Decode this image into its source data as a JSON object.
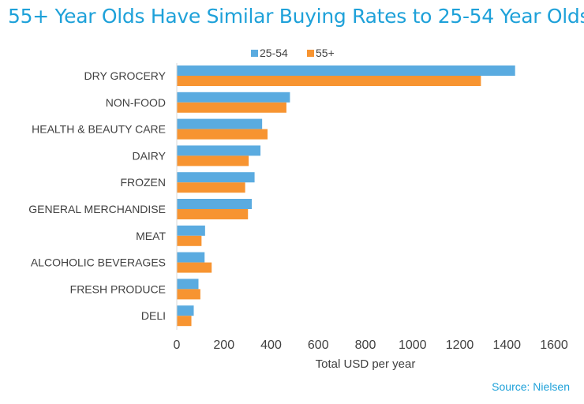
{
  "title": "55+ Year Olds Have Similar Buying Rates to 25-54 Year Olds",
  "source": "Source: Nielsen",
  "colors": {
    "series_25_54": "#5aabe0",
    "series_55_plus": "#f79431",
    "title": "#1ea1d9",
    "text": "#404040"
  },
  "chart_data": {
    "type": "bar",
    "orientation": "horizontal",
    "categories": [
      "DRY GROCERY",
      "NON-FOOD",
      "HEALTH & BEAUTY CARE",
      "DAIRY",
      "FROZEN",
      "GENERAL MERCHANDISE",
      "MEAT",
      "ALCOHOLIC BEVERAGES",
      "FRESH PRODUCE",
      "DELI"
    ],
    "series": [
      {
        "name": "25-54",
        "values": [
          1435,
          480,
          362,
          355,
          330,
          318,
          120,
          118,
          92,
          72
        ]
      },
      {
        "name": "55+",
        "values": [
          1290,
          465,
          385,
          305,
          290,
          302,
          105,
          148,
          100,
          62
        ]
      }
    ],
    "xlabel": "Total USD per year",
    "ylabel": "",
    "xlim": [
      0,
      1600
    ],
    "xticks": [
      "0",
      "200",
      "400",
      "600",
      "800",
      "1000",
      "1200",
      "1400",
      "1600"
    ],
    "grid": false,
    "legend_position": "top"
  }
}
